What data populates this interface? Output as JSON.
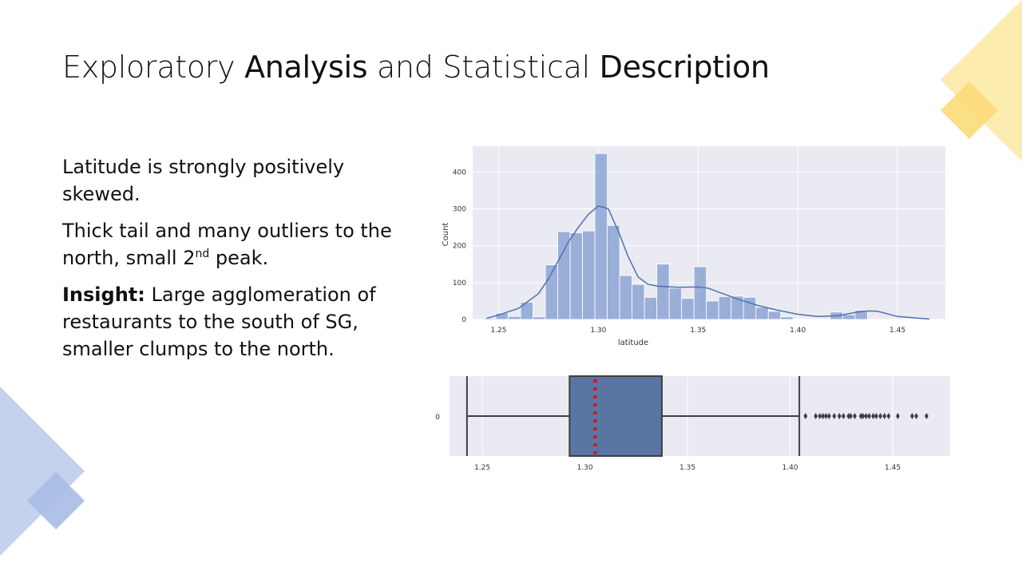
{
  "slide": {
    "title_parts": [
      "Exploratory ",
      "Analysis",
      " and Statistical ",
      "Description"
    ],
    "para1": "Latitude is strongly positively skewed.",
    "para2_before": "Thick tail and many outliers to the north, small 2",
    "para2_sup": "nd",
    "para2_after": " peak.",
    "insight_label": "Insight:",
    "insight_text": " Large agglomeration of restaurants to the south of SG, smaller clumps to the north.",
    "colors": {
      "deco_blue": "#c5d2ee",
      "deco_blue_dark": "#a7bbe4",
      "deco_yellow": "#fdecb0",
      "deco_yellow_dark": "#fbdc7a"
    }
  },
  "chart_data": [
    {
      "type": "bar",
      "subtype": "histogram_with_kde",
      "xlabel": "latitude",
      "ylabel": "Count",
      "xlim": [
        1.237,
        1.474
      ],
      "ylim": [
        0,
        470
      ],
      "xticks": [
        1.25,
        1.3,
        1.35,
        1.4,
        1.45
      ],
      "xtick_labels": [
        "1.25",
        "1.30",
        "1.35",
        "1.40",
        "1.45"
      ],
      "yticks": [
        0,
        100,
        200,
        300,
        400
      ],
      "ytick_labels": [
        "0",
        "100",
        "200",
        "300",
        "400"
      ],
      "grid": true,
      "colors": {
        "bar": "#7f9bcf",
        "kde": "#4c72b0",
        "background": "#eaeaf2"
      },
      "bin_start": 1.2424,
      "bin_width": 0.00621,
      "counts": [
        3,
        17,
        8,
        47,
        7,
        148,
        238,
        235,
        240,
        450,
        255,
        119,
        95,
        60,
        150,
        85,
        57,
        143,
        50,
        62,
        63,
        60,
        33,
        22,
        7,
        1,
        2,
        0,
        20,
        13,
        25,
        0,
        0,
        0,
        1,
        1
      ],
      "kde_x": [
        1.244,
        1.25,
        1.26,
        1.27,
        1.275,
        1.28,
        1.285,
        1.29,
        1.295,
        1.3,
        1.305,
        1.31,
        1.315,
        1.32,
        1.325,
        1.33,
        1.34,
        1.35,
        1.355,
        1.36,
        1.37,
        1.38,
        1.39,
        1.4,
        1.41,
        1.42,
        1.43,
        1.435,
        1.44,
        1.45,
        1.466
      ],
      "kde_y": [
        3,
        12,
        30,
        70,
        110,
        160,
        210,
        250,
        285,
        308,
        300,
        240,
        170,
        115,
        95,
        90,
        87,
        88,
        85,
        75,
        55,
        38,
        25,
        14,
        8,
        10,
        20,
        23,
        22,
        8,
        1
      ]
    },
    {
      "type": "box",
      "xlim": [
        1.234,
        1.478
      ],
      "xticks": [
        1.25,
        1.3,
        1.35,
        1.4,
        1.45
      ],
      "xtick_labels": [
        "1.25",
        "1.30",
        "1.35",
        "1.40",
        "1.45"
      ],
      "ytick_labels": [
        "0"
      ],
      "whisker_low": 1.2425,
      "q1": 1.2925,
      "median": 1.305,
      "q3": 1.3375,
      "whisker_high": 1.4045,
      "outliers": [
        1.4075,
        1.4125,
        1.4145,
        1.416,
        1.4175,
        1.419,
        1.4215,
        1.424,
        1.426,
        1.4285,
        1.4295,
        1.4315,
        1.4345,
        1.4355,
        1.437,
        1.4385,
        1.4405,
        1.442,
        1.444,
        1.446,
        1.448,
        1.4525,
        1.4595,
        1.4615,
        1.4665
      ],
      "colors": {
        "box": "#5975a4",
        "line": "#3f3f3f",
        "median": "#ff0000",
        "background": "#eaeaf2"
      },
      "grid": true
    }
  ]
}
